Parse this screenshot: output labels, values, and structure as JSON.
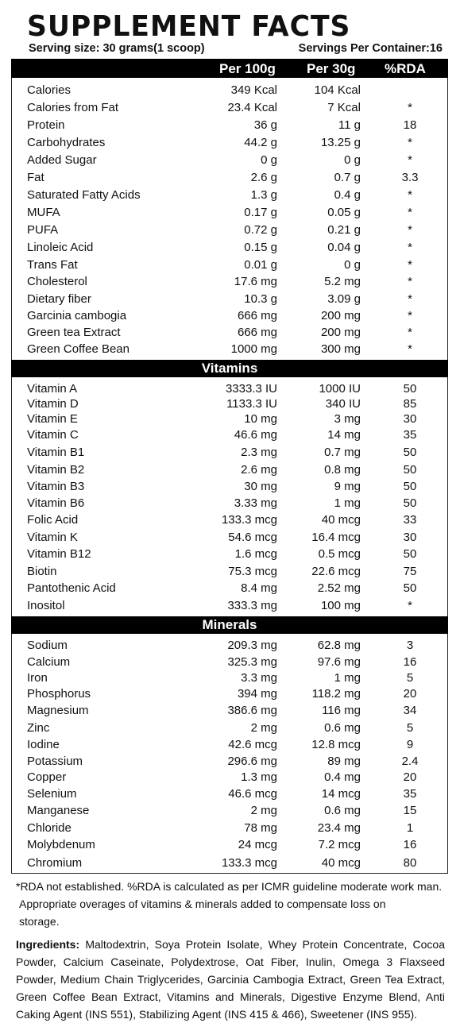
{
  "title": "SUPPLEMENT FACTS",
  "serving_size": "Serving size: 30 grams(1 scoop)",
  "servings_per_container": "Servings Per Container:16",
  "columns": {
    "per100": "Per 100g",
    "per30": "Per 30g",
    "rda": "%RDA"
  },
  "nutrients": [
    [
      "Calories",
      "349 Kcal",
      "104 Kcal",
      ""
    ],
    [
      "Calories from Fat",
      "23.4 Kcal",
      "7 Kcal",
      "*"
    ],
    [
      "Protein",
      "36 g",
      "11 g",
      "18"
    ],
    [
      "Carbohydrates",
      "44.2 g",
      "13.25 g",
      "*"
    ],
    [
      "Added Sugar",
      "0 g",
      "0 g",
      "*"
    ],
    [
      "Fat",
      "2.6 g",
      "0.7 g",
      "3.3"
    ],
    [
      "Saturated Fatty Acids",
      "1.3 g",
      "0.4 g",
      "*"
    ],
    [
      "MUFA",
      "0.17 g",
      "0.05 g",
      "*"
    ],
    [
      "PUFA",
      "0.72 g",
      "0.21 g",
      "*"
    ],
    [
      "Linoleic Acid",
      "0.15 g",
      "0.04 g",
      "*"
    ],
    [
      "Trans Fat",
      "0.01 g",
      "0 g",
      "*"
    ],
    [
      "Cholesterol",
      "17.6 mg",
      "5.2 mg",
      "*"
    ],
    [
      "Dietary fiber",
      "10.3 g",
      "3.09 g",
      "*"
    ],
    [
      "Garcinia cambogia",
      "666 mg",
      "200 mg",
      "*"
    ],
    [
      "Green tea Extract",
      "666 mg",
      "200 mg",
      "*"
    ],
    [
      "Green Coffee Bean",
      "1000 mg",
      "300 mg",
      "*"
    ]
  ],
  "vitamins_heading": "Vitamins",
  "vitamins": [
    [
      "Vitamin A",
      "3333.3 IU",
      "1000 IU",
      "50"
    ],
    [
      "Vitamin D",
      "1133.3 IU",
      "340 IU",
      "85"
    ],
    [
      "Vitamin E",
      "10 mg",
      "3 mg",
      "30"
    ],
    [
      "Vitamin C",
      "46.6 mg",
      "14 mg",
      "35"
    ],
    [
      "Vitamin B1",
      "2.3 mg",
      "0.7 mg",
      "50"
    ],
    [
      "Vitamin B2",
      "2.6 mg",
      "0.8 mg",
      "50"
    ],
    [
      "Vitamin B3",
      "30 mg",
      "9 mg",
      "50"
    ],
    [
      "Vitamin B6",
      "3.33 mg",
      "1 mg",
      "50"
    ],
    [
      "Folic Acid",
      "133.3 mcg",
      "40 mcg",
      "33"
    ],
    [
      "Vitamin K",
      "54.6 mcg",
      "16.4 mcg",
      "30"
    ],
    [
      "Vitamin B12",
      "1.6 mcg",
      "0.5 mcg",
      "50"
    ],
    [
      "Biotin",
      "75.3 mcg",
      "22.6 mcg",
      "75"
    ],
    [
      "Pantothenic Acid",
      "8.4 mg",
      "2.52 mg",
      "50"
    ],
    [
      "Inositol",
      "333.3 mg",
      "100 mg",
      "*"
    ]
  ],
  "minerals_heading": "Minerals",
  "minerals": [
    [
      "Sodium",
      "209.3 mg",
      "62.8 mg",
      "3"
    ],
    [
      "Calcium",
      "325.3 mg",
      "97.6 mg",
      "16"
    ],
    [
      "Iron",
      "3.3 mg",
      "1 mg",
      "5"
    ],
    [
      "Phosphorus",
      "394 mg",
      "118.2 mg",
      "20"
    ],
    [
      "Magnesium",
      "386.6 mg",
      "116 mg",
      "34"
    ],
    [
      "Zinc",
      "2 mg",
      "0.6 mg",
      "5"
    ],
    [
      "Iodine",
      "42.6 mcg",
      "12.8 mcg",
      "9"
    ],
    [
      "Potassium",
      "296.6 mg",
      "89 mg",
      "2.4"
    ],
    [
      "Copper",
      "1.3 mg",
      "0.4 mg",
      "20"
    ],
    [
      "Selenium",
      "46.6 mcg",
      "14 mcg",
      "35"
    ],
    [
      "Manganese",
      "2 mg",
      "0.6 mg",
      "15"
    ],
    [
      "Chloride",
      "78 mg",
      "23.4 mg",
      "1"
    ],
    [
      "Molybdenum",
      "24 mcg",
      "7.2 mcg",
      "16"
    ],
    [
      "Chromium",
      "133.3 mcg",
      "40 mcg",
      "80"
    ]
  ],
  "footnote_1": "*RDA not established. %RDA is calculated as per ICMR guideline moderate work man.",
  "footnote_2": "Appropriate overages of vitamins & minerals added to compensate loss on",
  "footnote_3": "storage.",
  "ingredients_label": "Ingredients:",
  "ingredients_text": "Maltodextrin, Soya Protein Isolate, Whey Protein Concentrate, Cocoa Powder, Calcium Caseinate, Polydextrose, Oat Fiber, Inulin, Omega 3 Flaxseed Powder, Medium Chain Triglycerides, Garcinia Cambogia Extract, Green Tea Extract, Green Coffee Bean Extract, Vitamins and Minerals, Digestive Enzyme Blend, Anti Caking Agent (INS 551), Stabilizing Agent (INS 415 & 466), Sweetener (INS 955)."
}
